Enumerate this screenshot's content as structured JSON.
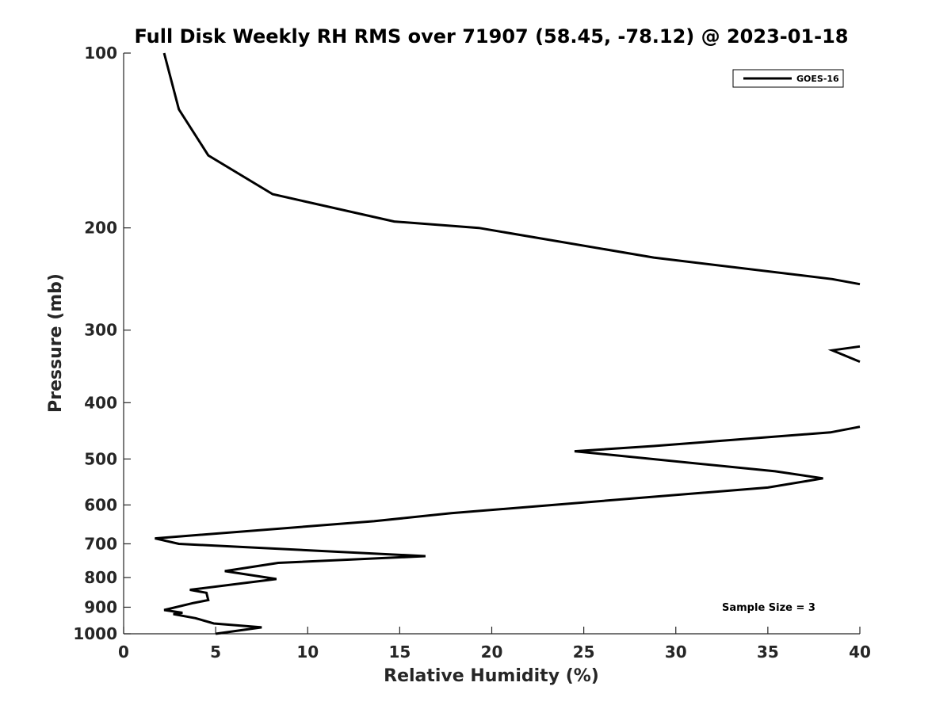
{
  "chart_data": {
    "type": "line",
    "title": "Full Disk Weekly RH RMS over 71907 (58.45, -78.12) @ 2023-01-18",
    "xlabel": "Relative Humidity (%)",
    "ylabel": "Pressure (mb)",
    "xlim": [
      0,
      40
    ],
    "ylim": [
      100,
      1000
    ],
    "y_scale": "log",
    "y_reversed": true,
    "x_ticks": [
      0,
      5,
      10,
      15,
      20,
      25,
      30,
      35,
      40
    ],
    "y_ticks": [
      100,
      200,
      300,
      400,
      500,
      600,
      700,
      800,
      900,
      1000
    ],
    "grid": false,
    "legend_position": "top-right",
    "annotation": "Sample Size = 3",
    "series": [
      {
        "name": "GOES-16",
        "color": "#000000",
        "segments": [
          [
            [
              2.2,
              100
            ],
            [
              3.0,
              125
            ],
            [
              4.6,
              150
            ],
            [
              8.1,
              175
            ],
            [
              14.7,
              195
            ],
            [
              19.3,
              200
            ],
            [
              28.8,
              225
            ],
            [
              38.5,
              245
            ],
            [
              40,
              250
            ]
          ],
          [
            [
              40,
              320
            ],
            [
              38.5,
              325
            ],
            [
              40,
              340
            ]
          ],
          [
            [
              40,
              440
            ],
            [
              38.4,
              450
            ],
            [
              28.8,
              475
            ],
            [
              24.5,
              485
            ],
            [
              35.4,
              525
            ],
            [
              38.0,
              540
            ],
            [
              35.0,
              560
            ],
            [
              17.8,
              620
            ],
            [
              13.6,
              640
            ],
            [
              1.7,
              685
            ],
            [
              3.0,
              700
            ],
            [
              16.4,
              735
            ],
            [
              8.4,
              755
            ],
            [
              5.5,
              780
            ],
            [
              8.3,
              805
            ],
            [
              3.6,
              840
            ],
            [
              4.5,
              850
            ],
            [
              4.6,
              875
            ],
            [
              3.8,
              885
            ],
            [
              2.2,
              910
            ],
            [
              3.2,
              920
            ],
            [
              2.7,
              925
            ],
            [
              3.9,
              940
            ],
            [
              4.9,
              960
            ],
            [
              7.5,
              975
            ],
            [
              5.0,
              1000
            ]
          ]
        ]
      }
    ]
  }
}
